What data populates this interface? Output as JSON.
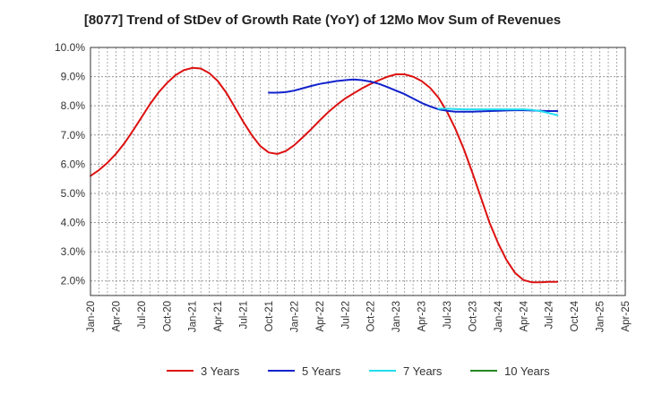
{
  "chart_data": {
    "type": "line",
    "title": "[8077]  Trend of StDev of Growth Rate (YoY) of 12Mo Mov Sum of Revenues",
    "xlabel": "",
    "ylabel": "",
    "ylim": [
      1.5,
      10.0
    ],
    "y_ticks": [
      {
        "value": 2.0,
        "label": "2.0%"
      },
      {
        "value": 3.0,
        "label": "3.0%"
      },
      {
        "value": 4.0,
        "label": "4.0%"
      },
      {
        "value": 5.0,
        "label": "5.0%"
      },
      {
        "value": 6.0,
        "label": "6.0%"
      },
      {
        "value": 7.0,
        "label": "7.0%"
      },
      {
        "value": 8.0,
        "label": "8.0%"
      },
      {
        "value": 9.0,
        "label": "9.0%"
      },
      {
        "value": 10.0,
        "label": "10.0%"
      }
    ],
    "x_ticks": [
      "Jan-20",
      "Apr-20",
      "Jul-20",
      "Oct-20",
      "Jan-21",
      "Apr-21",
      "Jul-21",
      "Oct-21",
      "Jan-22",
      "Apr-22",
      "Jul-22",
      "Oct-22",
      "Jan-23",
      "Apr-23",
      "Jul-23",
      "Oct-23",
      "Jan-24",
      "Apr-24",
      "Jul-24",
      "Oct-24",
      "Jan-25",
      "Apr-25"
    ],
    "grid": true,
    "legend_position": "bottom",
    "series": [
      {
        "name": "3 Years",
        "color": "#dd1111",
        "points": [
          [
            0,
            5.6
          ],
          [
            1,
            5.8
          ],
          [
            2,
            6.05
          ],
          [
            3,
            6.35
          ],
          [
            4,
            6.72
          ],
          [
            5,
            7.15
          ],
          [
            6,
            7.6
          ],
          [
            7,
            8.05
          ],
          [
            8,
            8.45
          ],
          [
            9,
            8.78
          ],
          [
            10,
            9.05
          ],
          [
            11,
            9.22
          ],
          [
            12,
            9.3
          ],
          [
            13,
            9.28
          ],
          [
            14,
            9.12
          ],
          [
            15,
            8.85
          ],
          [
            16,
            8.45
          ],
          [
            17,
            7.95
          ],
          [
            18,
            7.45
          ],
          [
            19,
            7.0
          ],
          [
            20,
            6.62
          ],
          [
            21,
            6.4
          ],
          [
            22,
            6.35
          ],
          [
            23,
            6.45
          ],
          [
            24,
            6.65
          ],
          [
            25,
            6.92
          ],
          [
            26,
            7.2
          ],
          [
            27,
            7.5
          ],
          [
            28,
            7.78
          ],
          [
            29,
            8.03
          ],
          [
            30,
            8.25
          ],
          [
            31,
            8.43
          ],
          [
            32,
            8.6
          ],
          [
            33,
            8.75
          ],
          [
            34,
            8.88
          ],
          [
            35,
            9.0
          ],
          [
            36,
            9.08
          ],
          [
            37,
            9.08
          ],
          [
            38,
            9.0
          ],
          [
            39,
            8.85
          ],
          [
            40,
            8.62
          ],
          [
            41,
            8.28
          ],
          [
            42,
            7.8
          ],
          [
            43,
            7.2
          ],
          [
            44,
            6.5
          ],
          [
            45,
            5.7
          ],
          [
            46,
            4.85
          ],
          [
            47,
            4.0
          ],
          [
            48,
            3.3
          ],
          [
            49,
            2.72
          ],
          [
            50,
            2.28
          ],
          [
            51,
            2.03
          ],
          [
            52,
            1.95
          ],
          [
            53,
            1.95
          ],
          [
            54,
            1.97
          ],
          [
            55,
            1.97
          ]
        ]
      },
      {
        "name": "5 Years",
        "color": "#1122cc",
        "points": [
          [
            21,
            8.45
          ],
          [
            22,
            8.45
          ],
          [
            23,
            8.47
          ],
          [
            24,
            8.52
          ],
          [
            25,
            8.6
          ],
          [
            26,
            8.68
          ],
          [
            27,
            8.75
          ],
          [
            28,
            8.8
          ],
          [
            29,
            8.85
          ],
          [
            30,
            8.88
          ],
          [
            31,
            8.9
          ],
          [
            32,
            8.88
          ],
          [
            33,
            8.83
          ],
          [
            34,
            8.75
          ],
          [
            35,
            8.64
          ],
          [
            36,
            8.52
          ],
          [
            37,
            8.4
          ],
          [
            38,
            8.25
          ],
          [
            39,
            8.1
          ],
          [
            40,
            7.98
          ],
          [
            41,
            7.88
          ],
          [
            42,
            7.83
          ],
          [
            43,
            7.8
          ],
          [
            44,
            7.8
          ],
          [
            45,
            7.8
          ],
          [
            46,
            7.81
          ],
          [
            47,
            7.82
          ],
          [
            48,
            7.83
          ],
          [
            49,
            7.84
          ],
          [
            50,
            7.85
          ],
          [
            51,
            7.85
          ],
          [
            52,
            7.84
          ],
          [
            53,
            7.83
          ],
          [
            54,
            7.82
          ],
          [
            55,
            7.82
          ]
        ]
      },
      {
        "name": "7 Years",
        "color": "#22ddee",
        "points": [
          [
            41,
            7.9
          ],
          [
            42,
            7.9
          ],
          [
            43,
            7.89
          ],
          [
            44,
            7.88
          ],
          [
            45,
            7.88
          ],
          [
            46,
            7.88
          ],
          [
            47,
            7.88
          ],
          [
            48,
            7.88
          ],
          [
            49,
            7.88
          ],
          [
            50,
            7.88
          ],
          [
            51,
            7.88
          ],
          [
            52,
            7.86
          ],
          [
            53,
            7.82
          ],
          [
            54,
            7.75
          ],
          [
            55,
            7.68
          ]
        ]
      },
      {
        "name": "10 Years",
        "color": "#228822",
        "points": []
      }
    ]
  }
}
